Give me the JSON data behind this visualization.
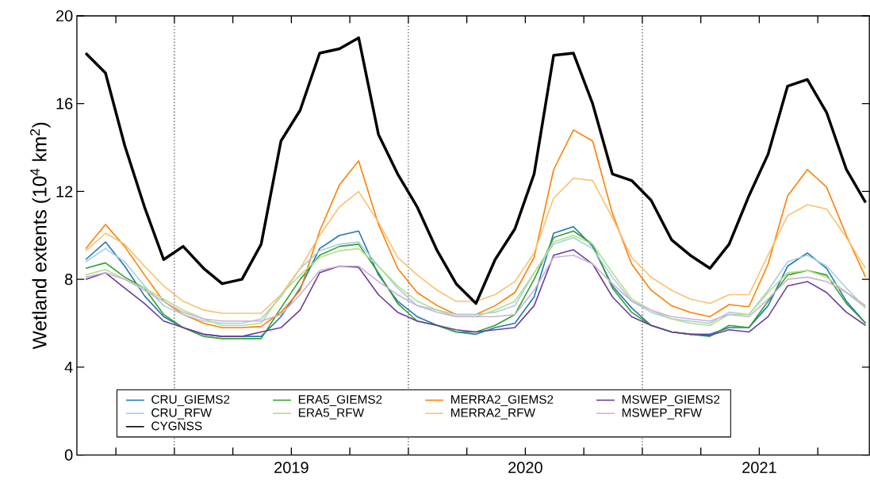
{
  "chart_data": {
    "type": "line",
    "ylabel": "Wetland extents (10$^{4}$ km$^{2}$)",
    "x": [
      "2018-08-15",
      "2018-09-15",
      "2018-10-15",
      "2018-11-15",
      "2018-12-15",
      "2019-01-15",
      "2019-02-15",
      "2019-03-15",
      "2019-04-15",
      "2019-05-15",
      "2019-06-15",
      "2019-07-15",
      "2019-08-15",
      "2019-09-15",
      "2019-10-15",
      "2019-11-15",
      "2019-12-15",
      "2020-01-15",
      "2020-02-15",
      "2020-03-15",
      "2020-04-15",
      "2020-05-15",
      "2020-06-15",
      "2020-07-15",
      "2020-08-15",
      "2020-09-15",
      "2020-10-15",
      "2020-11-15",
      "2020-12-15",
      "2021-01-15",
      "2021-02-15",
      "2021-03-15",
      "2021-04-15",
      "2021-05-15",
      "2021-06-15",
      "2021-07-15",
      "2021-08-15",
      "2021-09-15",
      "2021-10-15",
      "2021-11-15",
      "2021-12-15"
    ],
    "series": [
      {
        "name": "CRU_GIEMS2",
        "color": "#1f78b4",
        "values": [
          8.9,
          9.7,
          8.6,
          7.25,
          6.3,
          5.8,
          5.5,
          5.4,
          5.4,
          5.4,
          6.3,
          7.6,
          9.4,
          10.0,
          10.2,
          8.2,
          7.0,
          6.3,
          5.9,
          5.6,
          5.5,
          5.8,
          6.0,
          7.2,
          10.1,
          10.4,
          9.5,
          7.7,
          6.7,
          5.9,
          5.6,
          5.5,
          5.5,
          5.8,
          5.8,
          6.8,
          8.6,
          9.2,
          8.5,
          7.0,
          6.0
        ]
      },
      {
        "name": "ERA5_GIEMS2",
        "color": "#33a02c",
        "values": [
          8.5,
          8.75,
          8.1,
          7.6,
          6.4,
          5.8,
          5.4,
          5.3,
          5.3,
          5.3,
          6.7,
          8.0,
          9.1,
          9.5,
          9.6,
          8.3,
          6.9,
          6.1,
          5.9,
          5.6,
          5.6,
          5.9,
          6.4,
          8.0,
          9.9,
          10.2,
          9.6,
          7.6,
          6.5,
          5.9,
          5.6,
          5.5,
          5.4,
          5.9,
          5.8,
          7.0,
          8.2,
          8.4,
          8.2,
          6.9,
          6.0
        ]
      },
      {
        "name": "MERRA2_GIEMS2",
        "color": "#ff7f00",
        "values": [
          9.4,
          10.5,
          9.5,
          8.2,
          7.0,
          6.4,
          6.0,
          5.8,
          5.8,
          5.85,
          6.5,
          7.5,
          10.2,
          12.3,
          13.4,
          10.5,
          8.5,
          7.4,
          6.8,
          6.4,
          6.4,
          6.8,
          7.4,
          9.0,
          13.0,
          14.8,
          14.3,
          11.0,
          8.7,
          7.5,
          6.8,
          6.5,
          6.3,
          6.85,
          6.75,
          8.7,
          11.8,
          13.0,
          12.2,
          10.0,
          8.1
        ]
      },
      {
        "name": "MSWEP_GIEMS2",
        "color": "#6a3d9a",
        "values": [
          8.0,
          8.3,
          7.6,
          6.9,
          6.1,
          5.8,
          5.5,
          5.4,
          5.4,
          5.6,
          5.8,
          6.6,
          8.3,
          8.6,
          8.55,
          7.3,
          6.5,
          6.1,
          5.9,
          5.7,
          5.6,
          5.7,
          5.8,
          6.8,
          9.1,
          9.35,
          8.7,
          7.2,
          6.3,
          5.9,
          5.6,
          5.5,
          5.45,
          5.7,
          5.6,
          6.3,
          7.7,
          7.9,
          7.4,
          6.5,
          5.9
        ]
      },
      {
        "name": "CRU_RFW",
        "color": "#a6cee3",
        "values": [
          8.8,
          9.4,
          8.8,
          7.7,
          6.8,
          6.4,
          6.1,
          6.0,
          6.0,
          6.2,
          7.2,
          8.5,
          9.3,
          9.6,
          9.7,
          8.6,
          7.6,
          6.8,
          6.6,
          6.4,
          6.4,
          6.5,
          6.8,
          8.3,
          9.6,
          9.9,
          9.4,
          8.1,
          7.0,
          6.5,
          6.2,
          6.1,
          6.0,
          6.5,
          6.4,
          7.5,
          8.8,
          9.1,
          8.6,
          7.6,
          6.7
        ]
      },
      {
        "name": "ERA5_RFW",
        "color": "#b2df8a",
        "values": [
          8.2,
          8.45,
          8.0,
          7.6,
          7.1,
          6.6,
          6.2,
          5.9,
          5.9,
          6.0,
          7.3,
          8.2,
          9.0,
          9.3,
          9.4,
          8.6,
          7.7,
          7.0,
          6.6,
          6.3,
          6.3,
          6.6,
          7.0,
          8.3,
          9.7,
          10.0,
          9.6,
          8.3,
          7.1,
          6.6,
          6.2,
          6.0,
          5.9,
          6.4,
          6.4,
          7.4,
          8.3,
          8.4,
          8.1,
          7.4,
          6.7
        ]
      },
      {
        "name": "MERRA2_RFW",
        "color": "#fdbf6f",
        "values": [
          9.3,
          10.1,
          9.6,
          8.6,
          7.7,
          7.0,
          6.6,
          6.45,
          6.45,
          6.45,
          7.3,
          8.5,
          10.0,
          11.3,
          12.0,
          10.6,
          9.0,
          8.2,
          7.5,
          7.0,
          7.0,
          7.3,
          7.9,
          9.2,
          11.7,
          12.6,
          12.5,
          10.8,
          9.0,
          8.1,
          7.5,
          7.1,
          6.9,
          7.3,
          7.3,
          9.1,
          10.9,
          11.4,
          11.2,
          9.9,
          8.5
        ]
      },
      {
        "name": "MSWEP_RFW",
        "color": "#cab2d6",
        "values": [
          8.1,
          8.3,
          8.0,
          7.5,
          7.0,
          6.5,
          6.2,
          6.1,
          6.1,
          6.1,
          6.4,
          7.3,
          8.4,
          8.6,
          8.6,
          7.9,
          7.3,
          6.8,
          6.5,
          6.3,
          6.3,
          6.3,
          6.4,
          7.5,
          9.0,
          9.1,
          8.7,
          7.8,
          7.0,
          6.6,
          6.3,
          6.2,
          6.1,
          6.4,
          6.3,
          7.1,
          8.0,
          8.1,
          7.9,
          7.4,
          6.8
        ]
      },
      {
        "name": "CYGNSS",
        "color": "#000000",
        "values": [
          18.3,
          17.4,
          14.1,
          11.3,
          8.9,
          9.5,
          8.5,
          7.8,
          8.0,
          9.6,
          14.3,
          15.7,
          18.3,
          18.5,
          19.0,
          14.6,
          12.8,
          11.3,
          9.3,
          7.8,
          6.9,
          8.9,
          10.3,
          12.8,
          18.2,
          18.3,
          16.0,
          12.8,
          12.5,
          11.6,
          9.8,
          9.1,
          8.5,
          9.6,
          11.8,
          13.7,
          16.8,
          17.1,
          15.6,
          13.0,
          11.5
        ]
      }
    ],
    "xlim": [
      "2018-08-01",
      "2021-12-21"
    ],
    "xticks": [
      {
        "value": "2018-10-01",
        "label": null
      },
      {
        "value": "2019-01-01",
        "label": null
      },
      {
        "value": "2019-04-01",
        "label": null
      },
      {
        "value": "2019-07-01",
        "label": "2019"
      },
      {
        "value": "2019-10-01",
        "label": null
      },
      {
        "value": "2020-01-01",
        "label": null
      },
      {
        "value": "2020-04-01",
        "label": null
      },
      {
        "value": "2020-07-01",
        "label": "2020"
      },
      {
        "value": "2020-10-01",
        "label": null
      },
      {
        "value": "2021-01-01",
        "label": null
      },
      {
        "value": "2021-04-01",
        "label": null
      },
      {
        "value": "2021-07-01",
        "label": "2021"
      },
      {
        "value": "2021-10-01",
        "label": null
      }
    ],
    "ylim": [
      0,
      20
    ],
    "yticks": [
      0,
      4,
      8,
      12,
      16,
      20
    ],
    "ref_lines": [
      {
        "axis": "x",
        "value": "2019-01-01",
        "color": "#555555",
        "line_style": "dotted"
      },
      {
        "axis": "x",
        "value": "2020-01-01",
        "color": "#555555",
        "line_style": "dotted"
      },
      {
        "axis": "x",
        "value": "2021-01-01",
        "color": "#555555",
        "line_style": "dotted"
      }
    ],
    "legend": "bottom left",
    "grid": false,
    "marker": "none",
    "line_style": "solid"
  }
}
